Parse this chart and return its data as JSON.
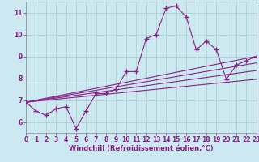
{
  "title": "",
  "xlabel": "Windchill (Refroidissement éolien,°C)",
  "ylabel": "",
  "background_color": "#cce8f0",
  "line_color": "#882288",
  "xlim": [
    0,
    23
  ],
  "ylim": [
    5.5,
    11.5
  ],
  "yticks": [
    6,
    7,
    8,
    9,
    10,
    11
  ],
  "xticks": [
    0,
    1,
    2,
    3,
    4,
    5,
    6,
    7,
    8,
    9,
    10,
    11,
    12,
    13,
    14,
    15,
    16,
    17,
    18,
    19,
    20,
    21,
    22,
    23
  ],
  "series": [
    [
      0,
      6.9
    ],
    [
      1,
      6.5
    ],
    [
      2,
      6.3
    ],
    [
      3,
      6.6
    ],
    [
      4,
      6.7
    ],
    [
      5,
      5.7
    ],
    [
      6,
      6.5
    ],
    [
      7,
      7.3
    ],
    [
      8,
      7.3
    ],
    [
      9,
      7.5
    ],
    [
      10,
      8.3
    ],
    [
      11,
      8.3
    ],
    [
      12,
      9.8
    ],
    [
      13,
      10.0
    ],
    [
      14,
      11.2
    ],
    [
      15,
      11.3
    ],
    [
      16,
      10.8
    ],
    [
      17,
      9.3
    ],
    [
      18,
      9.7
    ],
    [
      19,
      9.3
    ],
    [
      20,
      7.95
    ],
    [
      21,
      8.6
    ],
    [
      22,
      8.8
    ],
    [
      23,
      9.0
    ]
  ],
  "linear_lines": [
    {
      "x0": 0,
      "y0": 6.9,
      "x1": 23,
      "y1": 9.0
    },
    {
      "x0": 0,
      "y0": 6.9,
      "x1": 23,
      "y1": 8.7
    },
    {
      "x0": 0,
      "y0": 6.9,
      "x1": 23,
      "y1": 8.35
    },
    {
      "x0": 0,
      "y0": 6.9,
      "x1": 23,
      "y1": 7.95
    }
  ],
  "grid_color": "#aacccc",
  "marker": "+",
  "markersize": 4,
  "linewidth": 0.8,
  "tick_fontsize": 5.5,
  "xlabel_fontsize": 6.0
}
